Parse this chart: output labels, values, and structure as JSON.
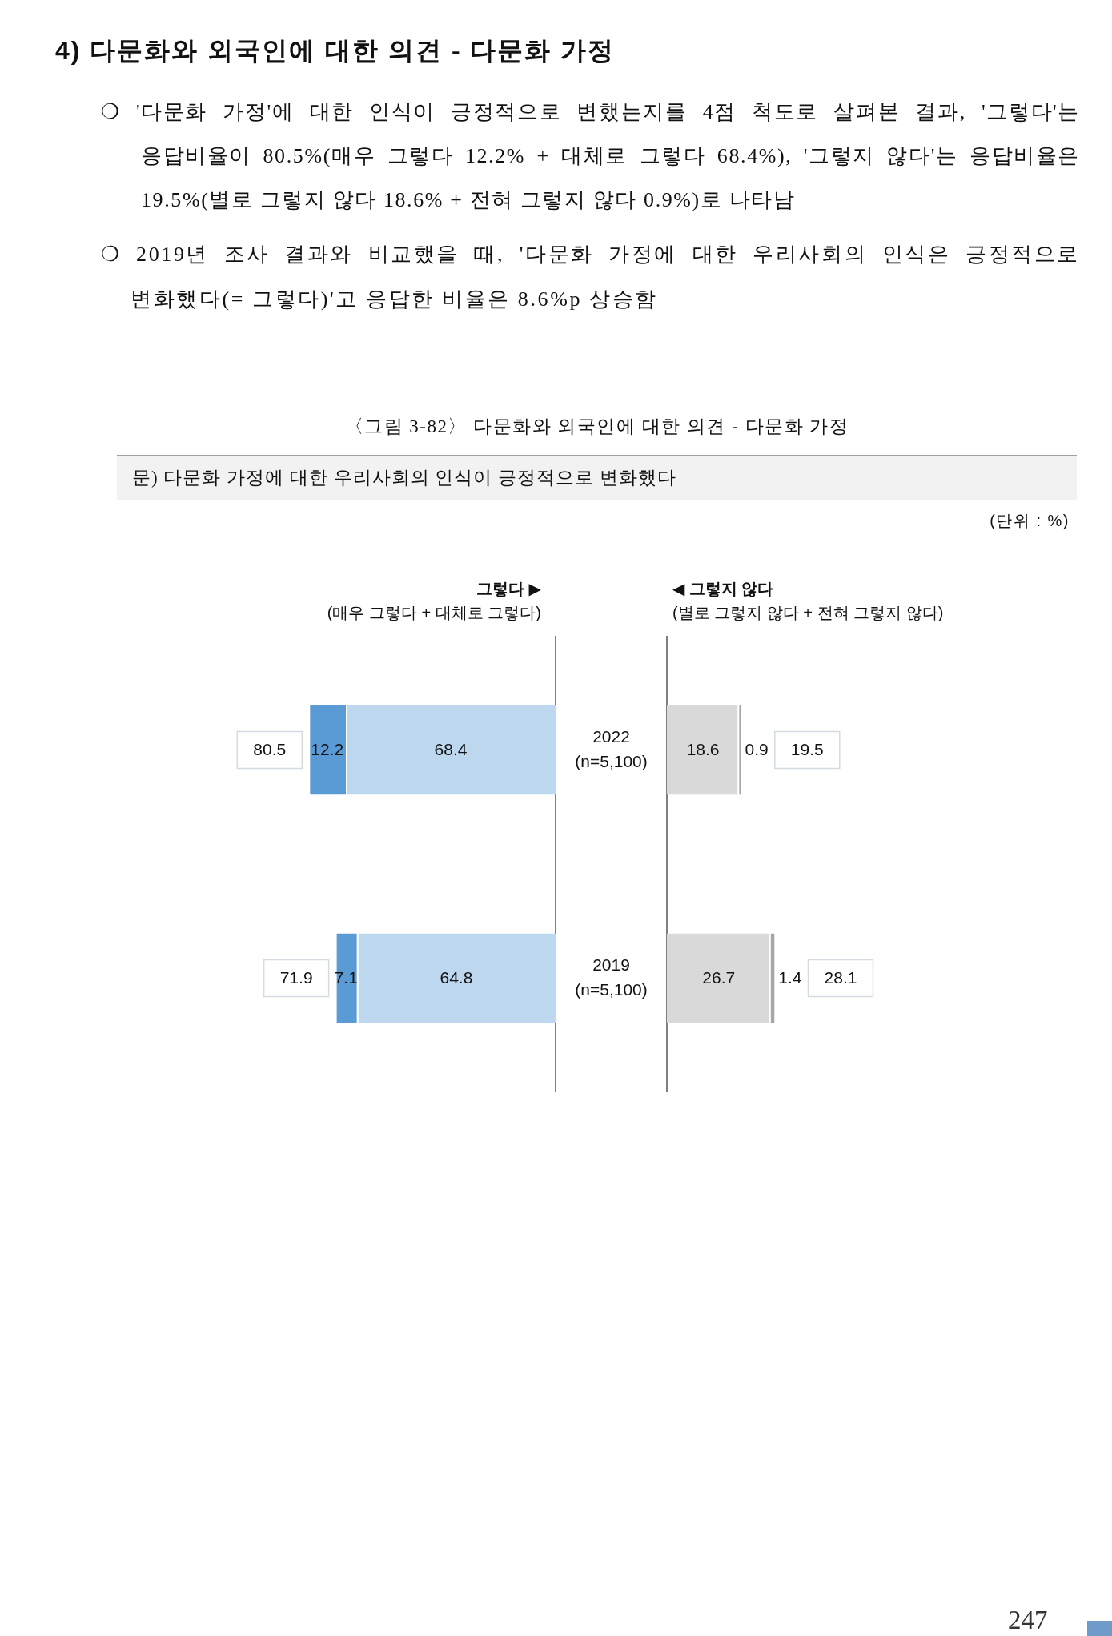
{
  "chart_data": [
    {
      "type": "bar",
      "orientation": "horizontal",
      "stacked": true,
      "title": "그렇다 ▶",
      "subtitle": "(매우 그렇다 + 대체로 그렇다)",
      "categories": [
        "2022 (n=5,100)",
        "2019 (n=5,100)"
      ],
      "series": [
        {
          "color": "#bdd7ee",
          "values": [
            68.4,
            64.8
          ]
        },
        {
          "color": "#5b9bd5",
          "values": [
            12.2,
            7.1
          ]
        }
      ],
      "xlim": [
        80.6,
        0
      ],
      "tick_labels": "y",
      "data_labels": true,
      "totals": [
        "80.5",
        "71.9"
      ],
      "annotations": [
        "4) 다문화와 외국인에 대한 의견 - 다문화 가정",
        "❍ '다문화 가정'에 대한 인식이 긍정적으로 변했는지를 4점 척도로 살펴본 결과, '그렇다'는 응답비율이 80.5%(매우 그렇다 12.2% + 대체로 그렇다 68.4%), '그렇지 않다'는 응답비율은 19.5%(별로 그렇지 않다 18.6% + 전혀 그렇지 않다 0.9%)로 나타남",
        "❍ 2019년 조사 결과와 비교했을 때, '다문화 가정에 대한 우리사회의 인식은 긍정적으로 변화했다(= 그렇다)'고 응답한 비율은 8.6%p 상승함",
        "〈그림 3-82〉 다문화와 외국인에 대한 의견 - 다문화 가정",
        "문) 다문화 가정에 대한 우리사회의 인식이 긍정적으로 변화했다",
        "(단위 : %)",
        "247"
      ]
    },
    {
      "type": "bar",
      "orientation": "horizontal",
      "stacked": true,
      "title": "◀ 그렇지 않다",
      "subtitle": "(별로 그렇지 않다 + 전혀 그렇지 않다)",
      "categories": [
        null,
        null
      ],
      "series": [
        {
          "color": "#d9d9d9",
          "values": [
            18.6,
            26.7
          ]
        },
        {
          "color": "#a6a6a6",
          "values": [
            0.9,
            1.4
          ]
        }
      ],
      "xlim": [
        0,
        28.1
      ],
      "tick_labels": false,
      "data_labels": true,
      "totals": [
        "19.5",
        "28.1"
      ]
    }
  ]
}
